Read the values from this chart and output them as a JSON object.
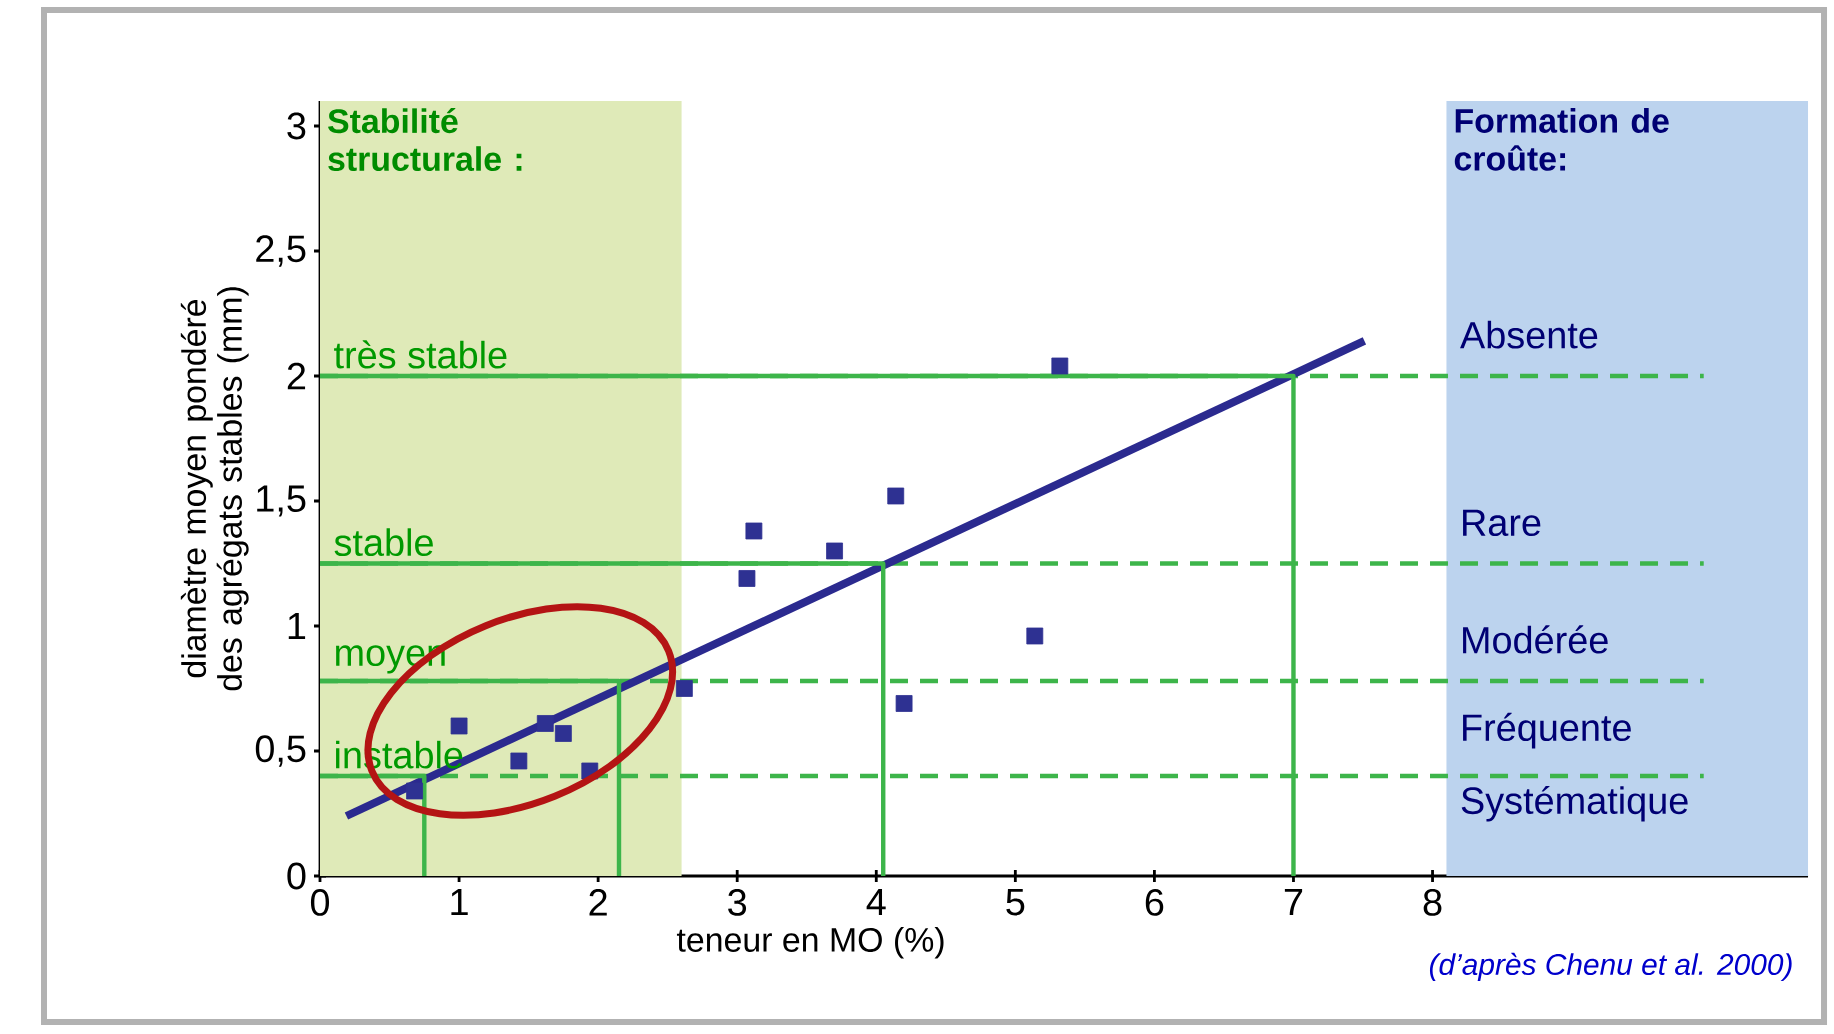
{
  "chart_data": {
    "type": "scatter",
    "xlabel": "teneur en MO (%)",
    "ylabel": "diamètre moyen pondéré des agrégats stables (mm)",
    "xlim": [
      0,
      10.7
    ],
    "ylim": [
      0,
      3.1
    ],
    "xticks": [
      0,
      1,
      2,
      3,
      4,
      5,
      6,
      7,
      8
    ],
    "yticks": [
      0,
      {
        "value": 0.5,
        "label": "0,5"
      },
      1,
      {
        "value": 1.5,
        "label": "1,5"
      },
      2,
      {
        "value": 2.5,
        "label": "2,5"
      },
      3
    ],
    "marker": "square",
    "series": [
      {
        "color": "#2e3192",
        "x": [
          0.68,
          1.0,
          1.43,
          1.62,
          1.75,
          1.94,
          2.62,
          3.07,
          3.12,
          3.7,
          4.14,
          4.2,
          5.14,
          5.32
        ],
        "values": [
          0.34,
          0.6,
          0.46,
          0.61,
          0.57,
          0.42,
          0.75,
          1.19,
          1.38,
          1.3,
          1.52,
          0.69,
          0.96,
          2.04
        ]
      },
      {
        "type": "line",
        "color": "#2b2a8f",
        "marker": "none",
        "x": [
          0.19,
          7.51
        ],
        "values": [
          0.24,
          2.14
        ]
      },
      {
        "type": "line",
        "color": "#3db54a",
        "marker": "none",
        "x": [
          0,
          0.75,
          0.75
        ],
        "values": [
          0.4,
          0.4,
          0
        ]
      },
      {
        "type": "line",
        "color": "#3db54a",
        "marker": "none",
        "x": [
          0,
          2.15,
          2.15
        ],
        "values": [
          0.78,
          0.78,
          0
        ]
      },
      {
        "type": "line",
        "color": "#3db54a",
        "marker": "none",
        "x": [
          0,
          4.05,
          4.05
        ],
        "values": [
          1.25,
          1.25,
          0
        ]
      },
      {
        "type": "line",
        "color": "#3db54a",
        "marker": "none",
        "x": [
          0,
          7.0,
          7.0
        ],
        "values": [
          2.0,
          2.0,
          0
        ]
      }
    ],
    "ref_lines": [
      {
        "axis": "y",
        "value": 0.4,
        "color": "#3db54a",
        "line_style": "dashed"
      },
      {
        "axis": "y",
        "value": 0.78,
        "color": "#3db54a",
        "line_style": "dashed"
      },
      {
        "axis": "y",
        "value": 1.25,
        "color": "#3db54a",
        "line_style": "dashed"
      },
      {
        "axis": "y",
        "value": 2.0,
        "color": "#3db54a",
        "line_style": "dashed"
      }
    ],
    "bands": [
      {
        "axis": "x",
        "from": 0,
        "to": 2.6,
        "label": "**Stabilité structurale :**",
        "color": "#dfeab8"
      },
      {
        "axis": "x",
        "from": 8.1,
        "to": 10.7,
        "label": "**Formation de croûte:**",
        "color": "#bcd3ee"
      }
    ],
    "annotations": [
      "très stable",
      "stable",
      "moyen",
      "instable",
      "Absente",
      "Rare",
      "Modérée",
      "Fréquente",
      "Systématique",
      "(d’après Chenu et al. 2000)"
    ]
  }
}
